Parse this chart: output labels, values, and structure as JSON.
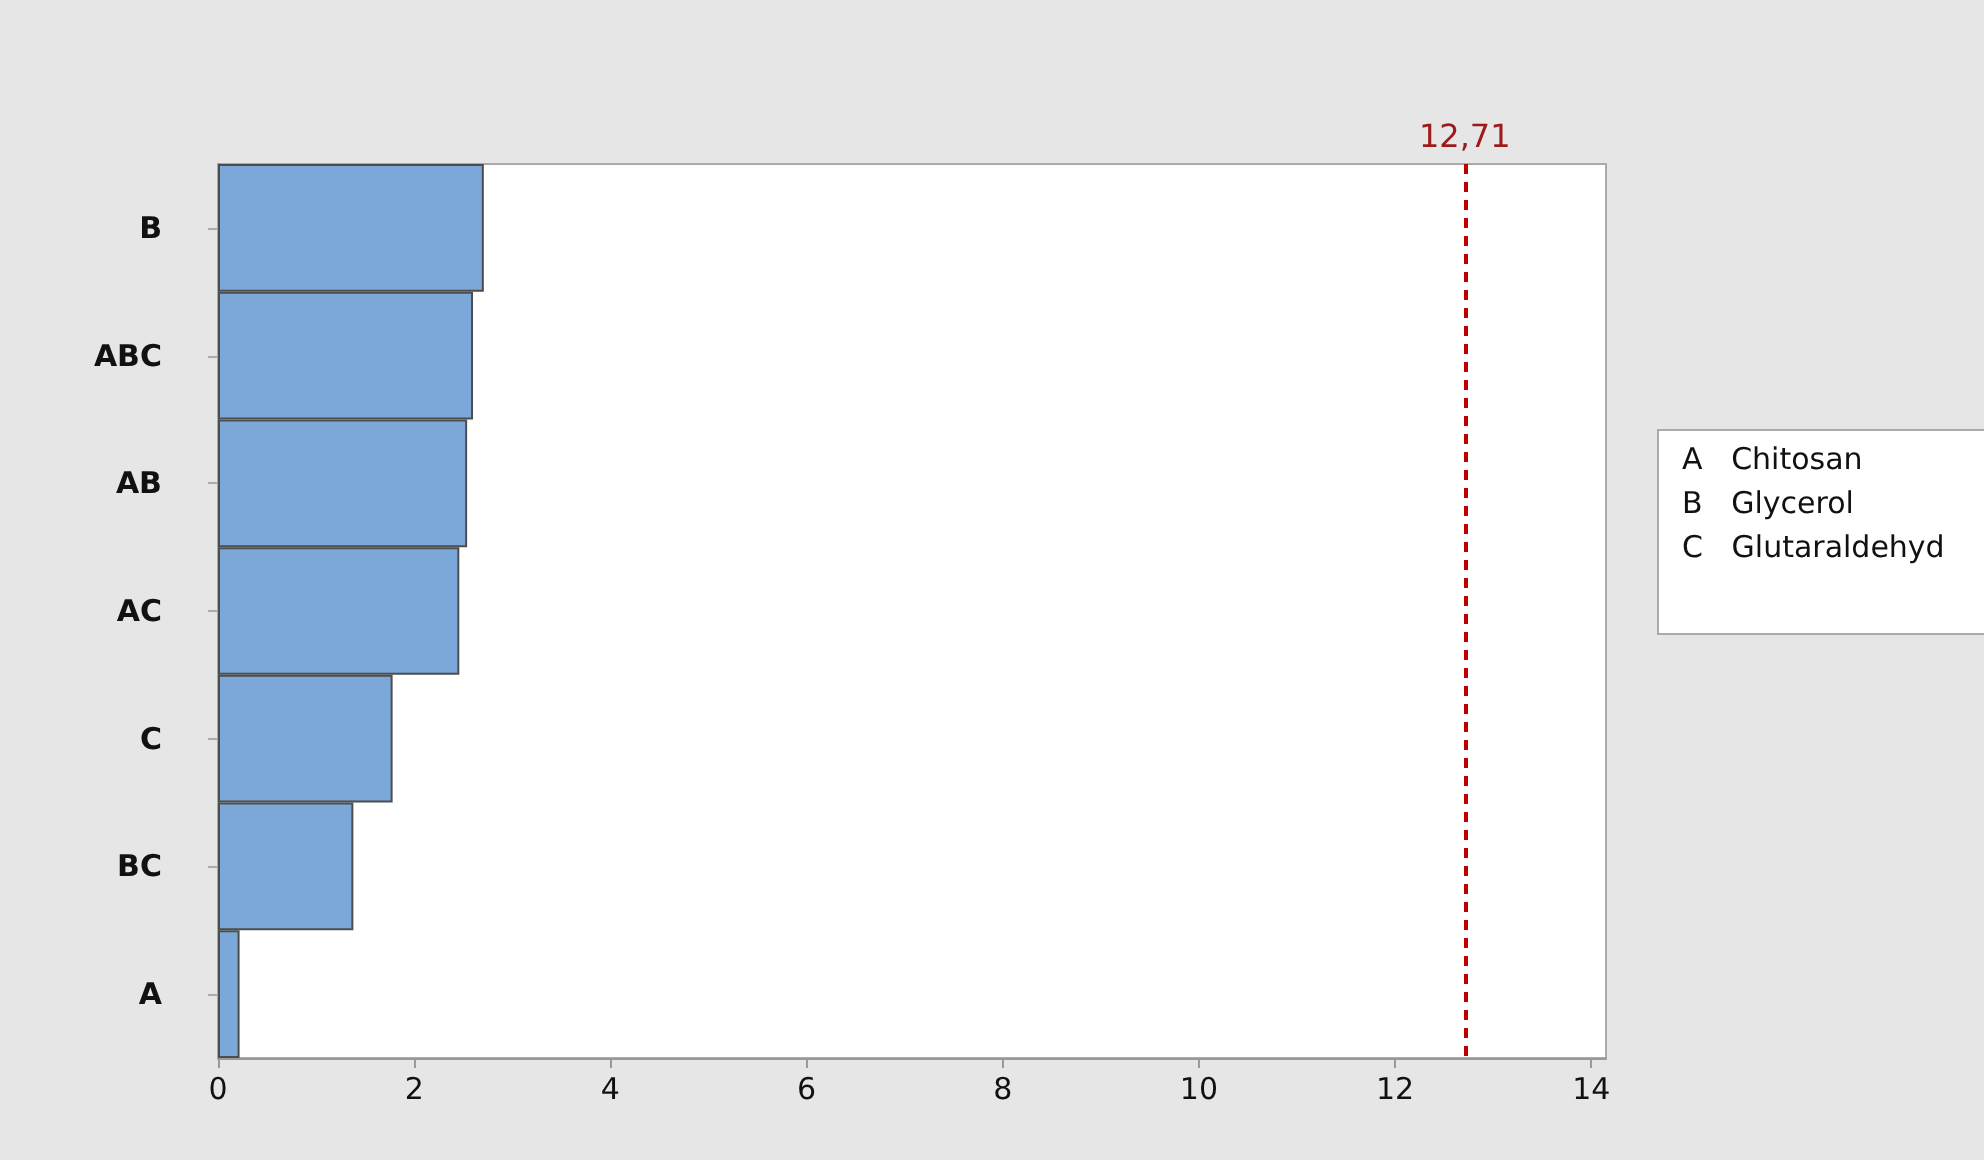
{
  "chart_data": {
    "type": "bar",
    "orientation": "horizontal",
    "categories": [
      "B",
      "ABC",
      "AB",
      "AC",
      "C",
      "BC",
      "A"
    ],
    "values": [
      2.71,
      2.6,
      2.54,
      2.46,
      1.78,
      1.38,
      0.22
    ],
    "color": "#7ba7d9",
    "xlim": [
      0,
      14.15
    ],
    "xticks": [
      0,
      2,
      4,
      6,
      8,
      10,
      12,
      14
    ],
    "grid": false,
    "ref_lines": [
      {
        "axis": "x",
        "value": 12.71,
        "label": "12,71",
        "color": "#c00000",
        "line_style": "dashed"
      }
    ],
    "annotations": [
      "A   Chitosan",
      "B   Glycerol",
      "C   Glutaraldehyd"
    ]
  }
}
